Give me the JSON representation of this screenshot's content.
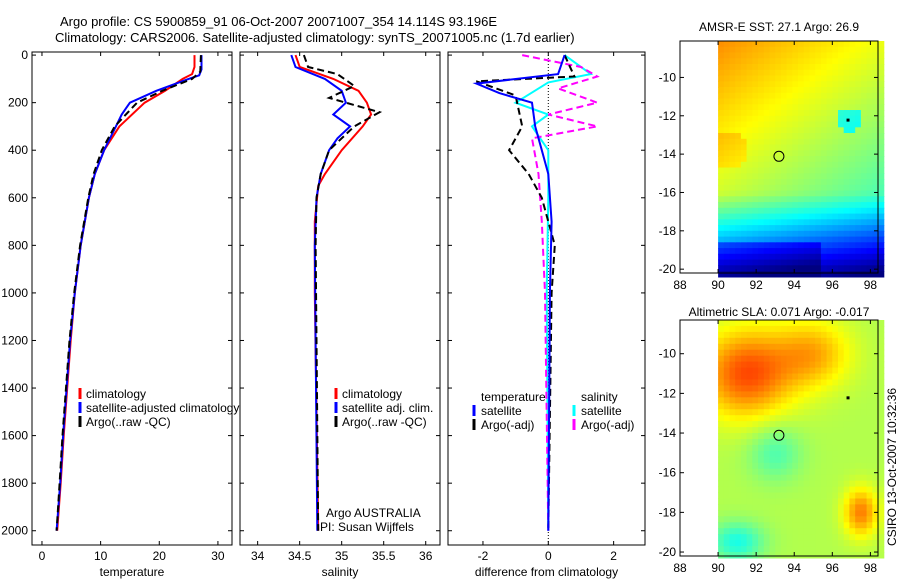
{
  "title": {
    "line1": "Argo profile: CS 5900859_91 06-Oct-2007 20071007_354 14.114S 93.196E",
    "line2": "Climatology: CARS2006. Satellite-adjusted climatology: synTS_20071005.nc (1.7d earlier)"
  },
  "annotations": {
    "argo_group": "Argo AUSTRALIA",
    "pi": "PI: Susan Wijffels",
    "footer": "CSIRO 13-Oct-2007 10:32:36"
  },
  "chart_data": [
    {
      "type": "line",
      "id": "temperature",
      "xlabel": "temperature",
      "ylabel": "",
      "xlim": [
        -1.7,
        32.4
      ],
      "ylim": [
        2060,
        -13
      ],
      "xticks": [
        0,
        10,
        20,
        30
      ],
      "yticks": [
        0,
        200,
        400,
        600,
        800,
        1000,
        1200,
        1400,
        1600,
        1800,
        2000
      ],
      "legend": [
        "climatology",
        "satellite-adjusted climatology",
        "Argo(..raw -QC)"
      ],
      "series": [
        {
          "name": "climatology",
          "color": "#ff0000",
          "dash": false,
          "points": [
            [
              26,
              0
            ],
            [
              26,
              50
            ],
            [
              25.6,
              80
            ],
            [
              24,
              100
            ],
            [
              21,
              150
            ],
            [
              17.5,
              200
            ],
            [
              13.2,
              300
            ],
            [
              10.6,
              400
            ],
            [
              9,
              500
            ],
            [
              8,
              600
            ],
            [
              6.6,
              800
            ],
            [
              5.6,
              1000
            ],
            [
              4.9,
              1200
            ],
            [
              4.3,
              1400
            ],
            [
              3.7,
              1600
            ],
            [
              3.2,
              1800
            ],
            [
              2.6,
              2000
            ]
          ]
        },
        {
          "name": "satellite-adjusted climatology",
          "color": "#0000ff",
          "dash": false,
          "points": [
            [
              27.2,
              0
            ],
            [
              27.2,
              60
            ],
            [
              26.8,
              85
            ],
            [
              25,
              100
            ],
            [
              19.5,
              150
            ],
            [
              15,
              200
            ],
            [
              13.6,
              250
            ],
            [
              12.6,
              300
            ],
            [
              10.6,
              400
            ],
            [
              9,
              500
            ],
            [
              8,
              600
            ],
            [
              6.6,
              800
            ],
            [
              5.6,
              1000
            ],
            [
              4.8,
              1200
            ],
            [
              4.2,
              1400
            ],
            [
              3.6,
              1600
            ],
            [
              3.1,
              1800
            ],
            [
              2.5,
              2000
            ]
          ]
        },
        {
          "name": "Argo(..raw -QC)",
          "color": "#000000",
          "dash": true,
          "points": [
            [
              27.1,
              0
            ],
            [
              27,
              70
            ],
            [
              25.6,
              100
            ],
            [
              20.5,
              150
            ],
            [
              16.2,
              200
            ],
            [
              12.4,
              300
            ],
            [
              10.2,
              400
            ],
            [
              8.8,
              500
            ],
            [
              7.9,
              600
            ],
            [
              6.5,
              800
            ],
            [
              5.5,
              1000
            ],
            [
              4.7,
              1200
            ],
            [
              4.1,
              1400
            ],
            [
              3.5,
              1600
            ],
            [
              3.0,
              1800
            ],
            [
              2.5,
              2000
            ]
          ]
        }
      ]
    },
    {
      "type": "line",
      "id": "salinity",
      "xlabel": "salinity",
      "xlim": [
        33.79,
        36.17
      ],
      "ylim": [
        2060,
        -13
      ],
      "xticks": [
        34,
        34.5,
        35,
        35.5,
        36
      ],
      "legend": [
        "climatology",
        "satellite adj. clim.",
        "Argo(..raw -QC)"
      ],
      "series": [
        {
          "name": "climatology",
          "color": "#ff0000",
          "dash": false,
          "points": [
            [
              34.45,
              0
            ],
            [
              34.5,
              50
            ],
            [
              34.9,
              100
            ],
            [
              35.2,
              150
            ],
            [
              35.3,
              200
            ],
            [
              35.35,
              250
            ],
            [
              35.25,
              300
            ],
            [
              35.0,
              400
            ],
            [
              34.8,
              500
            ],
            [
              34.72,
              550
            ],
            [
              34.68,
              700
            ],
            [
              34.68,
              1000
            ],
            [
              34.7,
              1500
            ],
            [
              34.72,
              2000
            ]
          ]
        },
        {
          "name": "satellite adj. clim.",
          "color": "#0000ff",
          "dash": false,
          "points": [
            [
              34.4,
              0
            ],
            [
              34.45,
              50
            ],
            [
              34.8,
              100
            ],
            [
              35.0,
              150
            ],
            [
              35.05,
              200
            ],
            [
              34.9,
              250
            ],
            [
              35.1,
              300
            ],
            [
              34.95,
              350
            ],
            [
              34.85,
              400
            ],
            [
              34.75,
              500
            ],
            [
              34.7,
              600
            ],
            [
              34.68,
              800
            ],
            [
              34.69,
              1200
            ],
            [
              34.71,
              2000
            ]
          ]
        },
        {
          "name": "Argo(..raw -QC)",
          "color": "#000000",
          "dash": true,
          "points": [
            [
              34.55,
              0
            ],
            [
              34.6,
              50
            ],
            [
              34.95,
              80
            ],
            [
              35.15,
              130
            ],
            [
              34.85,
              180
            ],
            [
              35.45,
              240
            ],
            [
              35.15,
              300
            ],
            [
              34.85,
              400
            ],
            [
              34.75,
              500
            ],
            [
              34.7,
              600
            ],
            [
              34.69,
              800
            ],
            [
              34.7,
              1200
            ],
            [
              34.72,
              2000
            ]
          ]
        }
      ]
    },
    {
      "type": "line",
      "id": "difference",
      "xlabel": "difference from climatology",
      "xlim": [
        -3.07,
        2.96
      ],
      "ylim": [
        2060,
        -13
      ],
      "xticks": [
        -2,
        0,
        2
      ],
      "legend_headers": [
        "temperature",
        "salinity"
      ],
      "legend": [
        "satellite",
        "Argo(-adj)",
        "satellite",
        "Argo(-adj)"
      ],
      "series": [
        {
          "name": "salinity satellite",
          "color": "#00ffff",
          "dash": false,
          "points": [
            [
              0.5,
              0
            ],
            [
              1.3,
              80
            ],
            [
              0,
              115
            ],
            [
              -1,
              200
            ],
            [
              0,
              250
            ],
            [
              -0.5,
              300
            ],
            [
              0,
              400
            ],
            [
              0,
              600
            ],
            [
              -0.05,
              1000
            ],
            [
              0,
              2000
            ]
          ]
        },
        {
          "name": "salinity Argo(-adj)",
          "color": "#ff00ff",
          "dash": true,
          "points": [
            [
              -0.8,
              0
            ],
            [
              1,
              50
            ],
            [
              1.5,
              90
            ],
            [
              0.3,
              140
            ],
            [
              1.5,
              200
            ],
            [
              0,
              250
            ],
            [
              1.5,
              300
            ],
            [
              -0.5,
              350
            ],
            [
              -0.3,
              500
            ],
            [
              -0.2,
              700
            ],
            [
              -0.1,
              1000
            ],
            [
              0,
              2000
            ]
          ]
        },
        {
          "name": "temperature Argo(-adj)",
          "color": "#000000",
          "dash": true,
          "points": [
            [
              0.5,
              0
            ],
            [
              0.8,
              90
            ],
            [
              -2.2,
              110
            ],
            [
              -1.0,
              170
            ],
            [
              -0.8,
              300
            ],
            [
              -1.2,
              400
            ],
            [
              -0.6,
              500
            ],
            [
              -0.2,
              600
            ],
            [
              0.2,
              800
            ],
            [
              0.1,
              1000
            ],
            [
              0,
              2000
            ]
          ]
        },
        {
          "name": "temperature satellite",
          "color": "#0000ff",
          "dash": false,
          "points": [
            [
              0.5,
              0
            ],
            [
              0.3,
              80
            ],
            [
              -2.2,
              120
            ],
            [
              -1.5,
              160
            ],
            [
              -0.5,
              200
            ],
            [
              -0.4,
              300
            ],
            [
              -0.2,
              400
            ],
            [
              0,
              500
            ],
            [
              0.1,
              700
            ],
            [
              0.05,
              1000
            ],
            [
              0,
              2000
            ]
          ]
        }
      ]
    },
    {
      "type": "heatmap",
      "id": "sst_map",
      "title": "AMSR-E SST: 27.1 Argo: 26.9",
      "xlim": [
        88,
        98.4
      ],
      "ylim": [
        -20.2,
        -8.1
      ],
      "xticks": [
        88,
        90,
        92,
        94,
        96,
        98
      ],
      "yticks": [
        -10,
        -12,
        -14,
        -16,
        -18,
        -20
      ],
      "profile_location": [
        93.196,
        -14.114
      ]
    },
    {
      "type": "heatmap",
      "id": "sla_map",
      "title": "Altimetric SLA: 0.071 Argo: -0.017",
      "xlim": [
        88,
        98.4
      ],
      "ylim": [
        -20.2,
        -8.3
      ],
      "xticks": [
        88,
        90,
        92,
        94,
        96,
        98
      ],
      "yticks": [
        -10,
        -12,
        -14,
        -16,
        -18,
        -20
      ],
      "profile_location": [
        93.196,
        -14.114
      ]
    }
  ]
}
